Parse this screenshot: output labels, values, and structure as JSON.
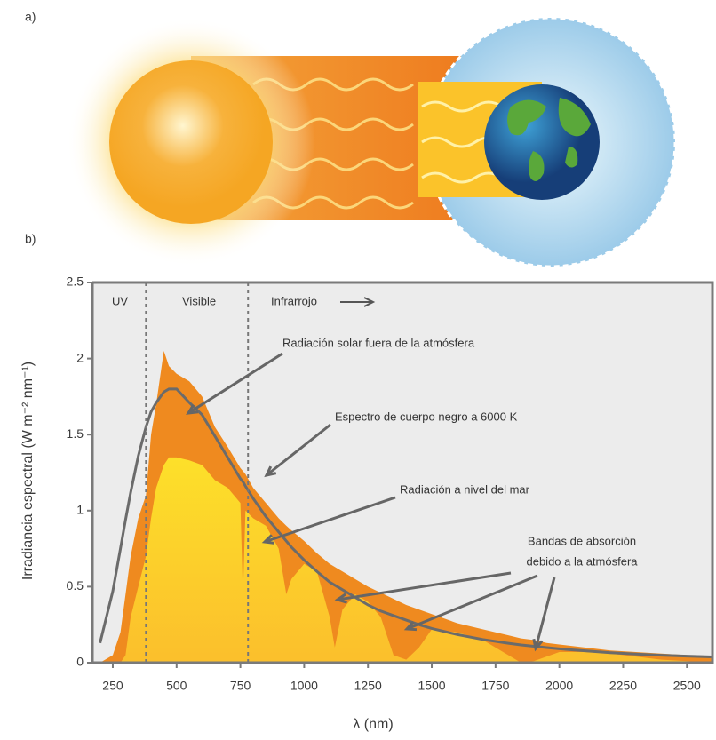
{
  "panel_labels": [
    "a)",
    "b)"
  ],
  "chart_data": {
    "type": "area",
    "x_label": "λ (nm)",
    "y_label": "Irradiancia espectral (W m⁻² nm⁻¹)",
    "regions": [
      "UV",
      "Visible",
      "Infrarrojo"
    ],
    "dividers": [
      380,
      780
    ],
    "absorption_note": [
      "Bandas de absorción",
      "debido a la atmósfera"
    ],
    "xlim": [
      170,
      2600
    ],
    "xticks": [
      250,
      500,
      750,
      1000,
      1250,
      1500,
      1750,
      2000,
      2250,
      2500
    ],
    "ylim": [
      0,
      2.5
    ],
    "yticks": [
      0,
      0.5,
      1,
      1.5,
      2,
      2.5
    ],
    "grid": false,
    "x": [
      200,
      250,
      280,
      300,
      320,
      350,
      380,
      400,
      420,
      450,
      470,
      500,
      550,
      600,
      650,
      700,
      750,
      760,
      770,
      800,
      850,
      900,
      930,
      950,
      1000,
      1050,
      1100,
      1120,
      1150,
      1200,
      1250,
      1300,
      1350,
      1400,
      1450,
      1500,
      1600,
      1700,
      1800,
      1850,
      1900,
      1950,
      2000,
      2100,
      2200,
      2300,
      2400,
      2500,
      2600
    ],
    "series": [
      {
        "name": "Radiación solar fuera de la atmósfera",
        "kind": "area",
        "color": "#ef8a1f",
        "values": [
          0,
          0.05,
          0.2,
          0.45,
          0.7,
          0.95,
          1.1,
          1.5,
          1.7,
          2.05,
          1.95,
          1.9,
          1.85,
          1.75,
          1.55,
          1.42,
          1.28,
          1.26,
          1.24,
          1.15,
          1.05,
          0.95,
          0.9,
          0.87,
          0.8,
          0.72,
          0.65,
          0.63,
          0.6,
          0.55,
          0.5,
          0.46,
          0.42,
          0.38,
          0.35,
          0.32,
          0.26,
          0.22,
          0.18,
          0.16,
          0.15,
          0.13,
          0.12,
          0.1,
          0.08,
          0.07,
          0.06,
          0.05,
          0.045
        ]
      },
      {
        "name": "Radiación a nivel del mar",
        "kind": "area",
        "color": "#fbc62a",
        "values": [
          0,
          0,
          0,
          0.05,
          0.3,
          0.5,
          0.7,
          0.95,
          1.15,
          1.3,
          1.35,
          1.35,
          1.33,
          1.3,
          1.2,
          1.15,
          1.05,
          0.45,
          1.0,
          0.95,
          0.9,
          0.75,
          0.45,
          0.55,
          0.65,
          0.6,
          0.3,
          0.1,
          0.35,
          0.45,
          0.4,
          0.3,
          0.05,
          0.02,
          0.1,
          0.22,
          0.2,
          0.15,
          0.05,
          0,
          0.01,
          0.04,
          0.07,
          0.07,
          0.06,
          0.04,
          0.02,
          0.01,
          0
        ]
      },
      {
        "name": "Espectro de cuerpo negro a 6000 K",
        "kind": "line",
        "color": "#6b6b6b",
        "values": [
          0.13,
          0.47,
          0.75,
          0.94,
          1.12,
          1.36,
          1.55,
          1.65,
          1.71,
          1.78,
          1.8,
          1.8,
          1.71,
          1.63,
          1.49,
          1.35,
          1.21,
          1.19,
          1.16,
          1.08,
          0.96,
          0.86,
          0.8,
          0.76,
          0.675,
          0.6,
          0.53,
          0.51,
          0.48,
          0.43,
          0.38,
          0.34,
          0.31,
          0.28,
          0.25,
          0.225,
          0.185,
          0.153,
          0.128,
          0.117,
          0.108,
          0.099,
          0.091,
          0.078,
          0.066,
          0.057,
          0.049,
          0.043,
          0.038
        ]
      }
    ]
  }
}
